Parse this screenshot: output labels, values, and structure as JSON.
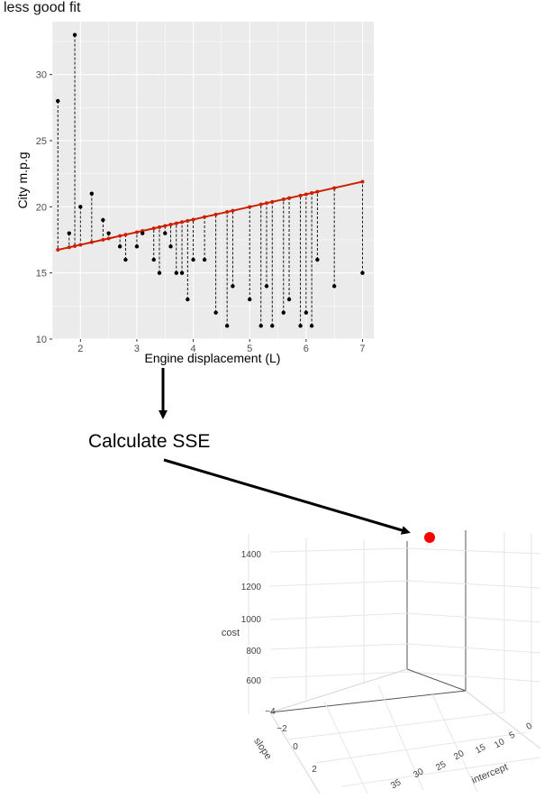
{
  "title": "less good fit",
  "step_label": "Calculate SSE",
  "colors": {
    "panel": "#ebebeb",
    "grid": "#ffffff",
    "fit_line": "#cc1f00",
    "points": "#000000",
    "marker_3d": "#ff0000"
  },
  "chart_data": [
    {
      "type": "scatter",
      "title": "less good fit",
      "xlabel": "Engine displacement (L)",
      "ylabel": "City m.p.g",
      "xlim": [
        1.5,
        7.2
      ],
      "ylim": [
        10,
        34
      ],
      "x_ticks": [
        "2",
        "3",
        "4",
        "5",
        "6",
        "7"
      ],
      "y_ticks": [
        "10",
        "15",
        "20",
        "25",
        "30"
      ],
      "x_tick_values": [
        2,
        3,
        4,
        5,
        6,
        7
      ],
      "y_tick_values": [
        10,
        15,
        20,
        25,
        30
      ],
      "grid": true,
      "fit_line": {
        "intercept": 15.22,
        "slope": 0.9545
      },
      "points": [
        {
          "x": 1.6,
          "y": 28
        },
        {
          "x": 1.8,
          "y": 18
        },
        {
          "x": 1.9,
          "y": 33
        },
        {
          "x": 2.0,
          "y": 20
        },
        {
          "x": 2.2,
          "y": 21
        },
        {
          "x": 2.4,
          "y": 19
        },
        {
          "x": 2.5,
          "y": 18
        },
        {
          "x": 2.7,
          "y": 17
        },
        {
          "x": 2.8,
          "y": 16
        },
        {
          "x": 3.0,
          "y": 17
        },
        {
          "x": 3.1,
          "y": 18
        },
        {
          "x": 3.3,
          "y": 16
        },
        {
          "x": 3.4,
          "y": 15
        },
        {
          "x": 3.5,
          "y": 18
        },
        {
          "x": 3.6,
          "y": 17
        },
        {
          "x": 3.7,
          "y": 15
        },
        {
          "x": 3.8,
          "y": 15
        },
        {
          "x": 3.9,
          "y": 13
        },
        {
          "x": 4.0,
          "y": 16
        },
        {
          "x": 4.2,
          "y": 16
        },
        {
          "x": 4.4,
          "y": 12
        },
        {
          "x": 4.6,
          "y": 11
        },
        {
          "x": 4.7,
          "y": 14
        },
        {
          "x": 5.0,
          "y": 13
        },
        {
          "x": 5.2,
          "y": 11
        },
        {
          "x": 5.3,
          "y": 14
        },
        {
          "x": 5.4,
          "y": 11
        },
        {
          "x": 5.6,
          "y": 12
        },
        {
          "x": 5.7,
          "y": 13
        },
        {
          "x": 5.9,
          "y": 11
        },
        {
          "x": 6.0,
          "y": 12
        },
        {
          "x": 6.1,
          "y": 11
        },
        {
          "x": 6.2,
          "y": 16
        },
        {
          "x": 6.5,
          "y": 14
        },
        {
          "x": 7.0,
          "y": 15
        }
      ]
    },
    {
      "type": "scatter3d",
      "zlabel": "cost",
      "xlabel": "intercept",
      "ylabel": "slope",
      "z_ticks": [
        "600",
        "800",
        "1000",
        "1200",
        "1400"
      ],
      "slope_ticks": [
        "−4",
        "−2",
        "0",
        "2"
      ],
      "intercept_ticks": [
        "0",
        "5",
        "10",
        "15",
        "20",
        "25",
        "30",
        "35"
      ],
      "marker": {
        "intercept": 0,
        "slope": -4,
        "cost": 1500
      }
    }
  ]
}
